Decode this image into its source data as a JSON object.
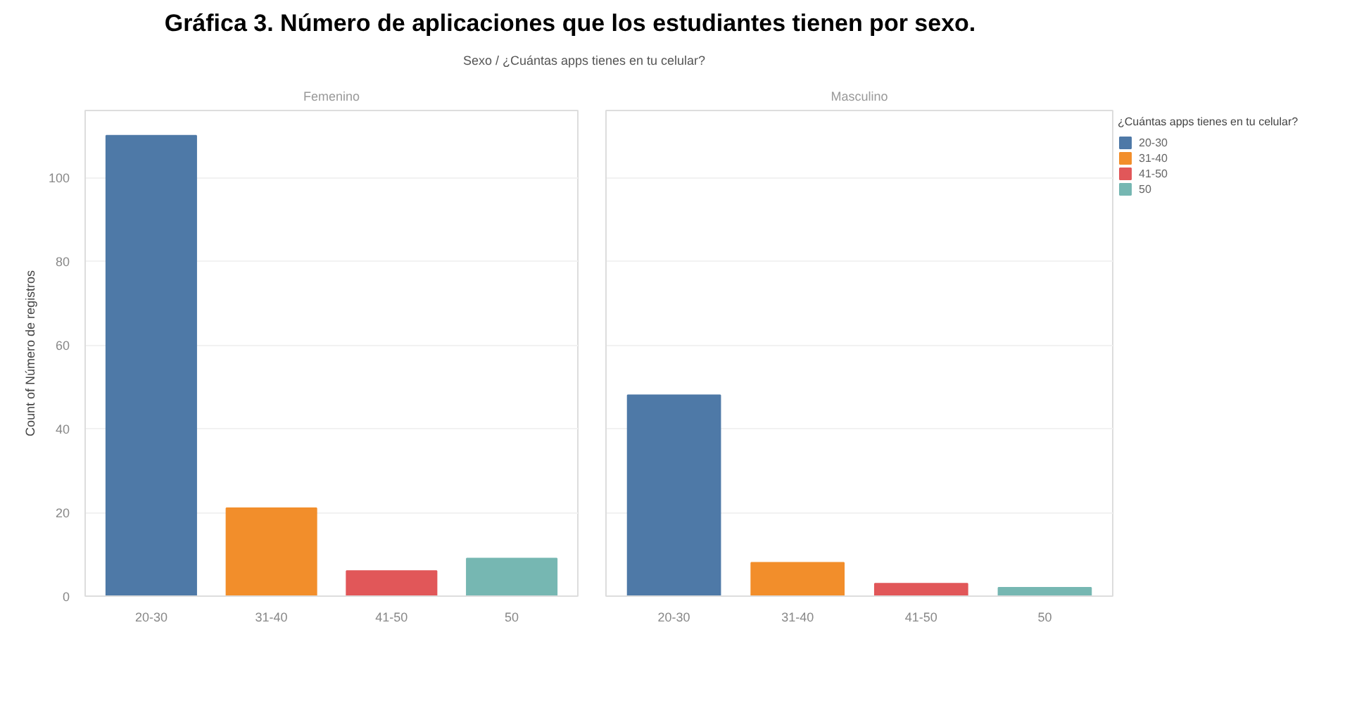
{
  "chart_data": [
    {
      "type": "bar",
      "title": "Gráfica 3. Número de aplicaciones que los estudiantes tienen por sexo.",
      "subtitle": "Sexo / ¿Cuántas apps tienes en tu celular?",
      "annotations": [
        "Femenino"
      ],
      "ylabel": "Count of Número de registros",
      "categories": [
        "20-30",
        "31-40",
        "41-50",
        "50"
      ],
      "series": [
        {
          "color": "#4e79a7",
          "values": [
            110,
            null,
            null,
            null
          ]
        },
        {
          "color": "#f28e2b",
          "values": [
            null,
            21,
            null,
            null
          ]
        },
        {
          "color": "#e15759",
          "values": [
            null,
            null,
            6,
            null
          ]
        },
        {
          "color": "#76b7b2",
          "values": [
            null,
            null,
            null,
            9
          ]
        }
      ],
      "ylim": [
        0,
        116
      ],
      "yticks": [
        0,
        20,
        40,
        60,
        80,
        100
      ],
      "grid": "y"
    },
    {
      "type": "bar",
      "annotations": [
        "Masculino"
      ],
      "legend_title": "¿Cuántas apps tienes en tu celular?",
      "legend": "right",
      "categories": [
        "20-30",
        "31-40",
        "41-50",
        "50"
      ],
      "series": [
        {
          "name": "20-30",
          "color": "#4e79a7",
          "values": [
            48,
            null,
            null,
            null
          ]
        },
        {
          "name": "31-40",
          "color": "#f28e2b",
          "values": [
            null,
            8,
            null,
            null
          ]
        },
        {
          "name": "41-50",
          "color": "#e15759",
          "values": [
            null,
            null,
            3,
            null
          ]
        },
        {
          "name": "50",
          "color": "#76b7b2",
          "values": [
            null,
            null,
            null,
            2
          ]
        }
      ],
      "ylim": [
        0,
        116
      ],
      "yticks": [
        0,
        20,
        40,
        60,
        80,
        100
      ],
      "grid": "y",
      "tick_labels": "x"
    }
  ]
}
